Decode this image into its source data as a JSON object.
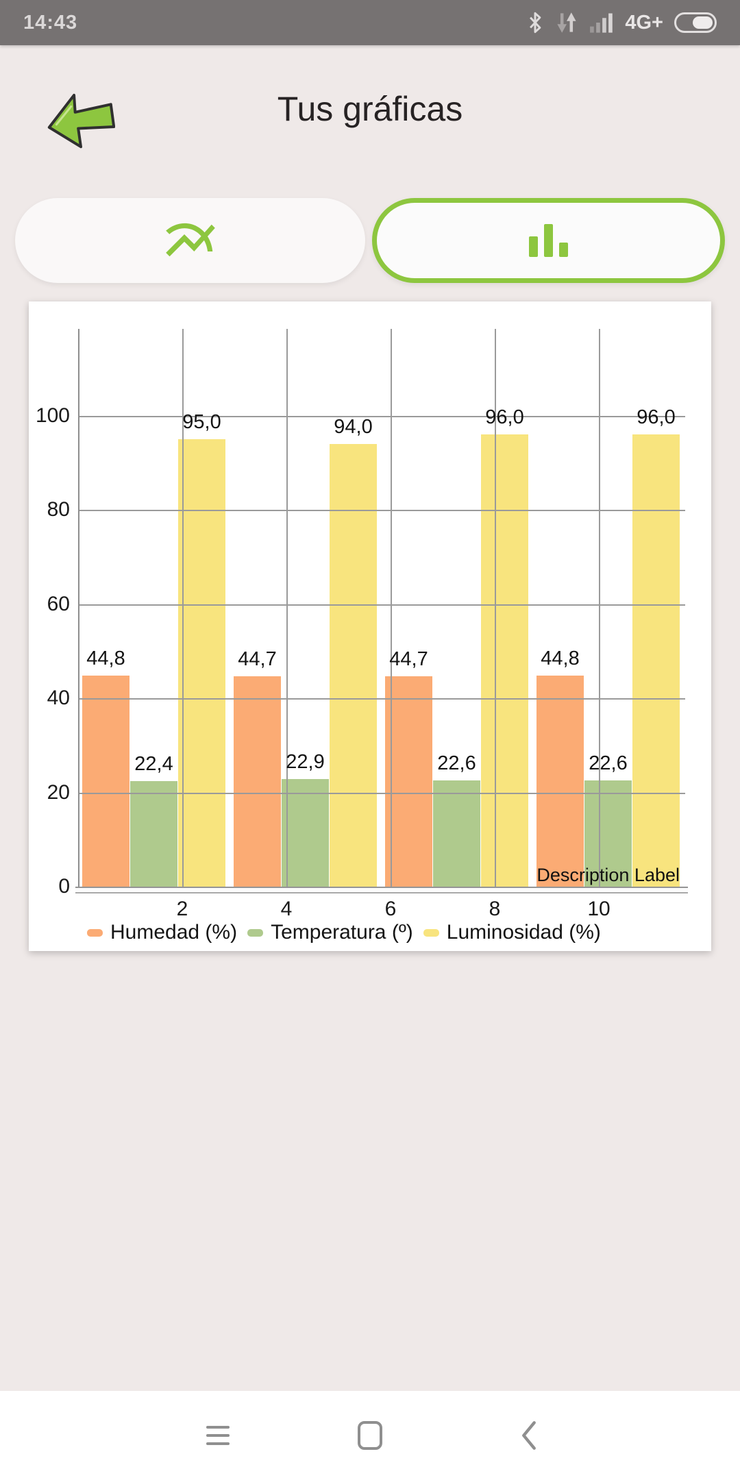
{
  "status_bar": {
    "time": "14:43",
    "network": "4G+",
    "icons": [
      "bluetooth-icon",
      "data-arrows-icon",
      "signal-icon",
      "battery-icon"
    ]
  },
  "header": {
    "title": "Tus gráficas",
    "back_icon": "back-arrow-icon"
  },
  "toggle": {
    "line_chart_icon": "line-chart-icon",
    "bar_chart_icon": "bar-chart-icon",
    "selected": "bar"
  },
  "chart_data": {
    "type": "bar",
    "title": "",
    "xlabel": "",
    "ylabel": "",
    "x_tick_labels": [
      "2",
      "4",
      "6",
      "8",
      "10"
    ],
    "y_ticks": [
      0,
      20,
      40,
      60,
      80,
      100
    ],
    "ylim": [
      0,
      118
    ],
    "grid": true,
    "legend_position": "bottom",
    "groups": 4,
    "series": [
      {
        "name": "Humedad (%)",
        "color": "#FBAB74",
        "values": [
          44.8,
          44.7,
          44.7,
          44.8
        ],
        "labels": [
          "44,8",
          "44,7",
          "44,7",
          "44,8"
        ]
      },
      {
        "name": "Temperatura (º)",
        "color": "#AFCA8D",
        "values": [
          22.4,
          22.9,
          22.6,
          22.6
        ],
        "labels": [
          "22,4",
          "22,9",
          "22,6",
          "22,6"
        ]
      },
      {
        "name": "Luminosidad (%)",
        "color": "#F8E47E",
        "values": [
          95.0,
          94.0,
          96.0,
          96.0
        ],
        "labels": [
          "95,0",
          "94,0",
          "96,0",
          "96,0"
        ]
      }
    ],
    "description_label": "Description Label",
    "accent_color": "#8DC63F"
  },
  "nav_bar": {
    "icons": [
      "menu-icon",
      "home-icon",
      "back-chevron-icon"
    ]
  }
}
